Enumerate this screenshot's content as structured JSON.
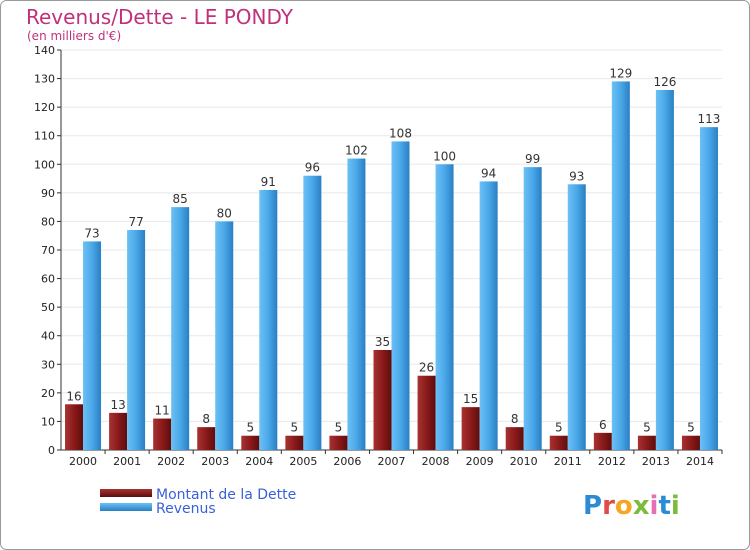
{
  "chart_data": {
    "type": "bar",
    "title": "Revenus/Dette - LE PONDY",
    "subtitle": "(en milliers d'€)",
    "categories": [
      "2000",
      "2001",
      "2002",
      "2003",
      "2004",
      "2005",
      "2006",
      "2007",
      "2008",
      "2009",
      "2010",
      "2011",
      "2012",
      "2013",
      "2014"
    ],
    "series": [
      {
        "name": "Montant de la Dette",
        "color": "#8b1a1a",
        "values": [
          16,
          13,
          11,
          8,
          5,
          5,
          5,
          35,
          26,
          15,
          8,
          5,
          6,
          5,
          5
        ]
      },
      {
        "name": "Revenus",
        "color": "#3a9ee0",
        "values": [
          73,
          77,
          85,
          80,
          91,
          96,
          102,
          108,
          100,
          94,
          99,
          93,
          129,
          126,
          113
        ]
      }
    ],
    "ylim": [
      0,
      140
    ],
    "yticks": [
      0,
      10,
      20,
      30,
      40,
      50,
      60,
      70,
      80,
      90,
      100,
      110,
      120,
      130,
      140
    ],
    "grid": true,
    "legend": "bottom-left",
    "colors": {
      "title": "#c0317a",
      "legend_text": "#3a5fd9",
      "axis": "#333333",
      "grid": "#e8e8e8"
    }
  },
  "logo": {
    "text": "Proxiti",
    "name": "proxiti-logo"
  }
}
